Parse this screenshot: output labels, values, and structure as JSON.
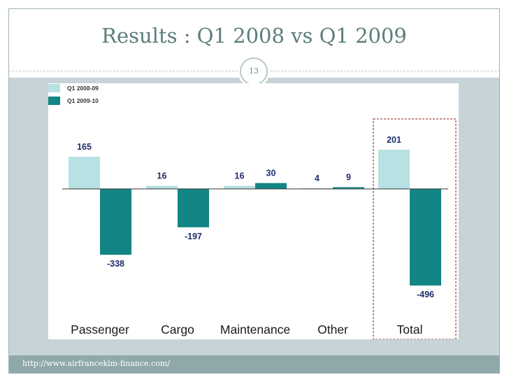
{
  "title": "Results : Q1 2008 vs Q1 2009",
  "page_number": "13",
  "footer_url": "http://www.airfranceklm-finance.com/",
  "colors": {
    "series_a": "#b7e1e3",
    "series_b": "#138584",
    "label": "#1f2d6e",
    "title": "#5a7e7c"
  },
  "chart_data": {
    "type": "bar",
    "categories": [
      "Passenger",
      "Cargo",
      "Maintenance",
      "Other",
      "Total"
    ],
    "series": [
      {
        "name": "Q1 2008-09",
        "values": [
          165,
          16,
          16,
          4,
          201
        ]
      },
      {
        "name": "Q1 2009-10",
        "values": [
          -338,
          -197,
          30,
          9,
          -496
        ]
      }
    ],
    "legend_position": "top-left",
    "grid": false,
    "highlighted_category": "Total"
  }
}
